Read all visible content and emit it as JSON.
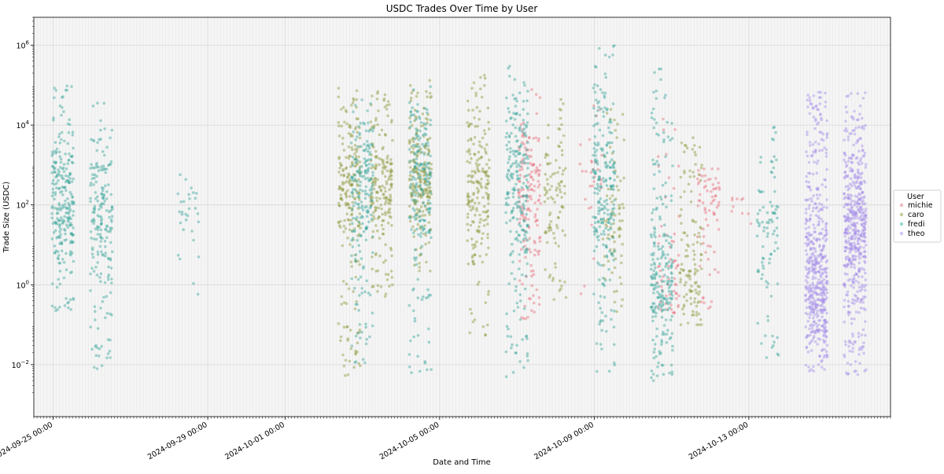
{
  "chart_data": {
    "type": "scatter",
    "title": "USDC Trades Over Time by User",
    "xlabel": "Date and Time",
    "ylabel": "Trade Size (USDC)",
    "yscale": "log",
    "ylim": [
      0.0005,
      5000000
    ],
    "xlim": [
      "2024-09-24T12:00",
      "2024-10-16T16:00"
    ],
    "grid": true,
    "legend_placement": "right",
    "legend_title": "User",
    "x_ticks": [
      "2024-09-25 00:00",
      "2024-09-29 00:00",
      "2024-10-01 00:00",
      "2024-10-05 00:00",
      "2024-10-09 00:00",
      "2024-10-13 00:00"
    ],
    "y_ticks": [
      {
        "value": 0.01,
        "base": "10",
        "exp": "−2"
      },
      {
        "value": 1,
        "base": "10",
        "exp": "0"
      },
      {
        "value": 100,
        "base": "10",
        "exp": "2"
      },
      {
        "value": 10000,
        "base": "10",
        "exp": "4"
      },
      {
        "value": 1000000,
        "base": "10",
        "exp": "6"
      }
    ],
    "series": [
      {
        "name": "michie",
        "color": "#e8707e",
        "clusters": [
          {
            "t": "2024-10-07T08:00",
            "y_min": 0.1,
            "y_max": 80000,
            "center": 200,
            "n": 160
          },
          {
            "t": "2024-10-08T22:00",
            "y_min": 0.5,
            "y_max": 50000,
            "center": 500,
            "n": 30
          },
          {
            "t": "2024-10-10T22:00",
            "y_min": 0.2,
            "y_max": 20000,
            "center": 1.5,
            "n": 60
          },
          {
            "t": "2024-10-11T23:00",
            "y_min": 0.2,
            "y_max": 800,
            "center": 200,
            "n": 70
          },
          {
            "t": "2024-10-12T20:00",
            "y_min": 2,
            "y_max": 300,
            "center": 100,
            "n": 10
          }
        ]
      },
      {
        "name": "caro",
        "color": "#8f9a3c",
        "clusters": [
          {
            "t": "2024-10-02T16:00",
            "y_min": 0.005,
            "y_max": 100000,
            "center": 200,
            "n": 220
          },
          {
            "t": "2024-10-03T12:00",
            "y_min": 0.5,
            "y_max": 100000,
            "center": 300,
            "n": 200
          },
          {
            "t": "2024-10-04T12:00",
            "y_min": 2,
            "y_max": 200000,
            "center": 400,
            "n": 220
          },
          {
            "t": "2024-10-06T00:00",
            "y_min": 0.05,
            "y_max": 200000,
            "center": 300,
            "n": 200
          },
          {
            "t": "2024-10-08T00:00",
            "y_min": 0.3,
            "y_max": 50000,
            "center": 200,
            "n": 100
          },
          {
            "t": "2024-10-09T12:00",
            "y_min": 0.1,
            "y_max": 30000,
            "center": 50,
            "n": 80
          },
          {
            "t": "2024-10-11T12:00",
            "y_min": 0.1,
            "y_max": 5000,
            "center": 1,
            "n": 120
          }
        ]
      },
      {
        "name": "fredi",
        "color": "#3aa79b",
        "clusters": [
          {
            "t": "2024-09-25T06:00",
            "y_min": 0.2,
            "y_max": 100000,
            "center": 100,
            "n": 260
          },
          {
            "t": "2024-09-26T06:00",
            "y_min": 0.004,
            "y_max": 40000,
            "center": 50,
            "n": 200
          },
          {
            "t": "2024-09-28T12:00",
            "y_min": 0.5,
            "y_max": 1000,
            "center": 100,
            "n": 30
          },
          {
            "t": "2024-10-03T00:00",
            "y_min": 0.01,
            "y_max": 50000,
            "center": 300,
            "n": 200
          },
          {
            "t": "2024-10-04T12:00",
            "y_min": 0.005,
            "y_max": 100000,
            "center": 500,
            "n": 200
          },
          {
            "t": "2024-10-07T00:00",
            "y_min": 0.005,
            "y_max": 300000,
            "center": 500,
            "n": 240
          },
          {
            "t": "2024-10-09T06:00",
            "y_min": 0.005,
            "y_max": 1000000,
            "center": 300,
            "n": 240
          },
          {
            "t": "2024-10-10T18:00",
            "y_min": 0.003,
            "y_max": 300000,
            "center": 1,
            "n": 240
          },
          {
            "t": "2024-10-13T12:00",
            "y_min": 0.01,
            "y_max": 10000,
            "center": 30,
            "n": 90
          }
        ]
      },
      {
        "name": "theo",
        "color": "#a68ee8",
        "clusters": [
          {
            "t": "2024-10-14T18:00",
            "y_min": 0.006,
            "y_max": 70000,
            "center": 1,
            "n": 520
          },
          {
            "t": "2024-10-15T18:00",
            "y_min": 0.005,
            "y_max": 70000,
            "center": 30,
            "n": 520
          }
        ]
      }
    ]
  }
}
